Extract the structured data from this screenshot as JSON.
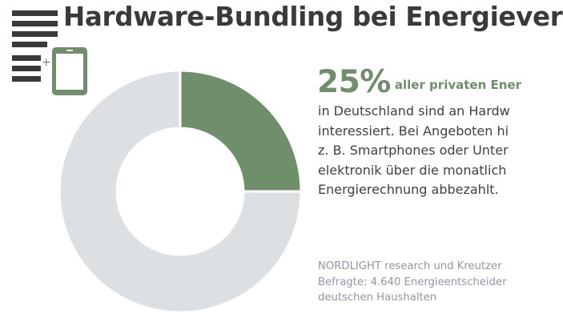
{
  "title": "Hardware-Bundling bei Energiever",
  "chart_data": {
    "type": "pie",
    "title": "",
    "slices": [
      {
        "label": "",
        "value": 25,
        "color": "#6f8f6a"
      },
      {
        "label": "",
        "value": 75,
        "color": "#dde0e3"
      }
    ],
    "donut": true
  },
  "headline": {
    "value": "25%",
    "text": "aller privaten Ener"
  },
  "body_lines": [
    "in Deutschland sind an Hardw",
    "interessiert. Bei Angeboten hi",
    "z. B. Smartphones oder Unter",
    "elektronik über die monatlich",
    "Energierechnung abbezahlt."
  ],
  "source_lines": [
    "NORDLIGHT research und Kreutzer",
    "Befragte: 4.640 Energieentscheider",
    "deutschen Haushalten"
  ],
  "logo": {
    "icon": "document-plus-tablet-icon",
    "plus": "+"
  },
  "colors": {
    "accent": "#6f8f6a",
    "ring_rest": "#dde0e3",
    "title": "#3a3a3a",
    "body": "#404040",
    "source": "#8e98a3"
  }
}
